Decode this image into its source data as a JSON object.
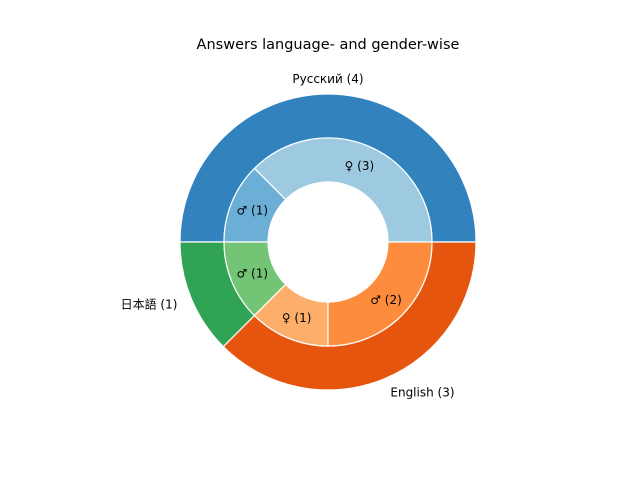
{
  "chart_data": {
    "type": "pie",
    "title": "Answers language- and gender-wise",
    "outer_ring": {
      "slices": [
        {
          "label": "Русский (4)",
          "value": 4,
          "color": "#3182bd"
        },
        {
          "label": "日本語 (1)",
          "value": 1,
          "color": "#31a354"
        },
        {
          "label": "English (3)",
          "value": 3,
          "color": "#e6550d"
        }
      ]
    },
    "inner_ring": {
      "slices": [
        {
          "label": "♀ (3)",
          "value": 3,
          "color": "#9ecae1"
        },
        {
          "label": "♂ (1)",
          "value": 1,
          "color": "#6baed6"
        },
        {
          "label": "♂ (1)",
          "value": 1,
          "color": "#74c476"
        },
        {
          "label": "♀ (1)",
          "value": 1,
          "color": "#fdae6b"
        },
        {
          "label": "♂ (2)",
          "value": 2,
          "color": "#fd8d3c"
        }
      ]
    },
    "legend": "none",
    "grid": false
  }
}
